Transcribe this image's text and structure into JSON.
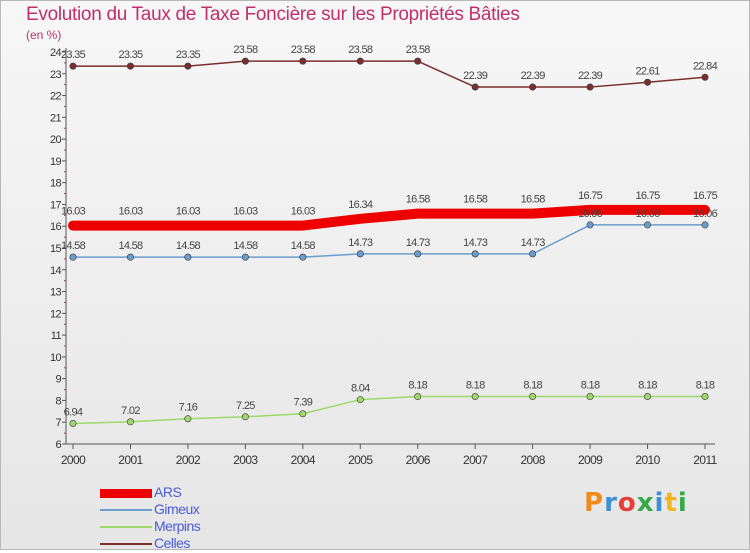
{
  "title": "Evolution du Taux de Taxe Foncière sur les Propriétés Bâties",
  "units": "(en %)",
  "logo": {
    "letters": [
      "P",
      "r",
      "o",
      "x",
      "i",
      "t",
      "i"
    ],
    "colors": [
      "#f28a1a",
      "#3f8fd6",
      "#e4403a",
      "#35a84a",
      "#3f8fd6",
      "#f2b71a",
      "#35a84a"
    ]
  },
  "chart_data": {
    "type": "line",
    "title": "Evolution du Taux de Taxe Foncière sur les Propriétés Bâties",
    "ylabel": "(en %)",
    "xlabel": "",
    "x": [
      "2000",
      "2001",
      "2002",
      "2003",
      "2004",
      "2005",
      "2006",
      "2007",
      "2008",
      "2009",
      "2010",
      "2011"
    ],
    "ylim": [
      6,
      24
    ],
    "yticks": [
      "6",
      "7",
      "8",
      "9",
      "10",
      "11",
      "12",
      "13",
      "14",
      "15",
      "16",
      "17",
      "18",
      "19",
      "20",
      "21",
      "22",
      "23",
      "24"
    ],
    "grid": false,
    "legend_position": "bottom-left",
    "series": [
      {
        "name": "Celles",
        "color": "#7a2e2e",
        "width": 1.5,
        "values": [
          23.35,
          23.35,
          23.35,
          23.58,
          23.58,
          23.58,
          23.58,
          22.39,
          22.39,
          22.39,
          22.61,
          22.84
        ],
        "labels": [
          "23.35",
          "23.35",
          "23.35",
          "23.58",
          "23.58",
          "23.58",
          "23.58",
          "22.39",
          "22.39",
          "22.39",
          "22.61",
          "22.84"
        ]
      },
      {
        "name": "ARS",
        "color": "#ee0000",
        "width": 10,
        "values": [
          16.03,
          16.03,
          16.03,
          16.03,
          16.03,
          16.34,
          16.58,
          16.58,
          16.58,
          16.75,
          16.75,
          16.75
        ],
        "labels": [
          "16.03",
          "16.03",
          "16.03",
          "16.03",
          "16.03",
          "16.34",
          "16.58",
          "16.58",
          "16.58",
          "16.75",
          "16.75",
          "16.75"
        ]
      },
      {
        "name": "Gimeux",
        "color": "#6a9ccc",
        "width": 1.5,
        "values": [
          14.58,
          14.58,
          14.58,
          14.58,
          14.58,
          14.73,
          14.73,
          14.73,
          14.73,
          16.06,
          16.06,
          16.06
        ],
        "labels": [
          "14.58",
          "14.58",
          "14.58",
          "14.58",
          "14.58",
          "14.73",
          "14.73",
          "14.73",
          "14.73",
          "16.06",
          "16.06",
          "16.06"
        ]
      },
      {
        "name": "Merpins",
        "color": "#9ed86a",
        "width": 1.5,
        "values": [
          6.94,
          7.02,
          7.16,
          7.25,
          7.39,
          8.04,
          8.18,
          8.18,
          8.18,
          8.18,
          8.18,
          8.18
        ],
        "labels": [
          "6.94",
          "7.02",
          "7.16",
          "7.25",
          "7.39",
          "8.04",
          "8.18",
          "8.18",
          "8.18",
          "8.18",
          "8.18",
          "8.18"
        ]
      }
    ],
    "legend": [
      {
        "name": "ARS",
        "color": "#ee0000",
        "width": 9
      },
      {
        "name": "Gimeux",
        "color": "#6a9ccc",
        "width": 2
      },
      {
        "name": "Merpins",
        "color": "#9ed86a",
        "width": 2
      },
      {
        "name": "Celles",
        "color": "#7a2e2e",
        "width": 2
      }
    ]
  }
}
